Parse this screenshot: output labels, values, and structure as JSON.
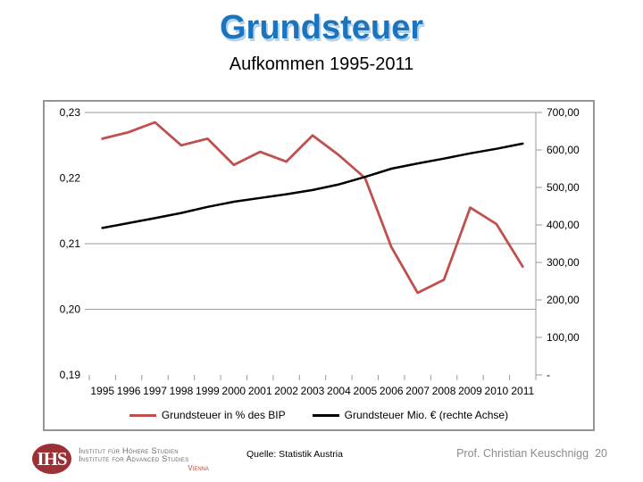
{
  "slide": {
    "title": "Grundsteuer",
    "subtitle": "Aufkommen 1995-2011",
    "source": "Quelle: Statistik Austria",
    "footer_author": "Prof. Christian Keuschnigg",
    "page_number": "20"
  },
  "logo": {
    "acronym": "IHS",
    "line1": "Institut für Höhere Studien",
    "line2": "Institute for Advanced Studies",
    "city": "Vienna"
  },
  "chart_data": {
    "type": "line",
    "title": "",
    "categories": [
      "1995",
      "1996",
      "1997",
      "1998",
      "1999",
      "2000",
      "2001",
      "2002",
      "2003",
      "2004",
      "2005",
      "2006",
      "2007",
      "2008",
      "2009",
      "2010",
      "2011"
    ],
    "series": [
      {
        "name": "Grundsteuer in % des BIP",
        "axis": "left",
        "color": "#c0504d",
        "values": [
          0.226,
          0.227,
          0.2285,
          0.225,
          0.226,
          0.222,
          0.224,
          0.2225,
          0.2265,
          0.2235,
          0.22,
          0.2095,
          0.2025,
          0.2045,
          0.2155,
          0.213,
          0.2065
        ]
      },
      {
        "name": "Grundsteuer Mio. € (rechte Achse)",
        "axis": "right",
        "color": "#000000",
        "values": [
          392,
          405,
          418,
          432,
          448,
          462,
          472,
          482,
          493,
          508,
          528,
          550,
          564,
          577,
          591,
          603,
          617
        ]
      }
    ],
    "left_axis": {
      "min": 0.19,
      "max": 0.23,
      "ticks": [
        "0,23",
        "0,22",
        "0,21",
        "0,20",
        "0,19"
      ],
      "gridline_values": [
        0.23,
        0.21,
        0.2
      ]
    },
    "right_axis": {
      "min": 0,
      "max": 700,
      "ticks": [
        "700,00",
        "600,00",
        "500,00",
        "400,00",
        "300,00",
        "200,00",
        "100,00",
        "-"
      ]
    },
    "legend_position": "bottom",
    "grid": "partial-horizontal",
    "grid_color": "#9a9a9a"
  }
}
